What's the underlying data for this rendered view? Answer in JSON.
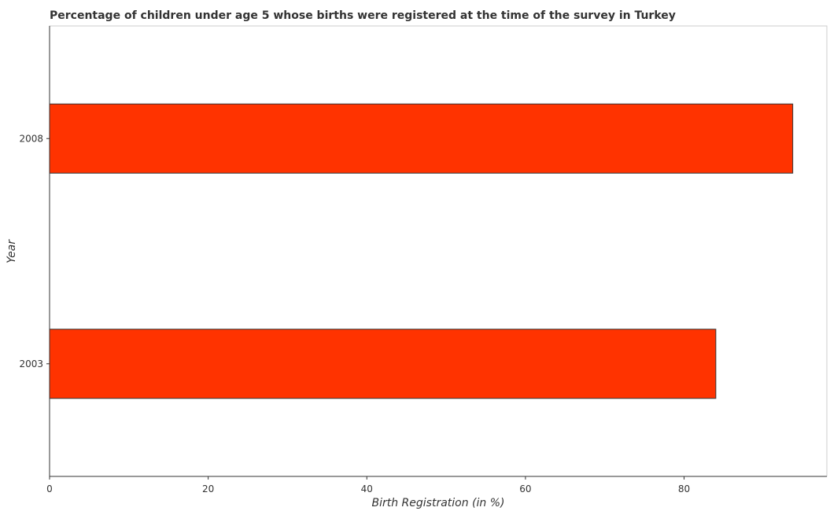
{
  "chart_data": {
    "type": "bar",
    "orientation": "horizontal",
    "title": "Percentage of children under age 5 whose births were registered at the time of the survey in Turkey",
    "xlabel": "Birth Registration (in %)",
    "ylabel": "Year",
    "categories": [
      "2003",
      "2008"
    ],
    "values": [
      84.0,
      93.7
    ],
    "xlim": [
      0,
      98
    ],
    "xticks": [
      0,
      20,
      40,
      60,
      80
    ],
    "xtick_labels": [
      "0",
      "20",
      "40",
      "60",
      "80"
    ],
    "bar_color": "#ff3300",
    "bar_edge_color": "#333333",
    "grid": false,
    "legend": "none"
  }
}
